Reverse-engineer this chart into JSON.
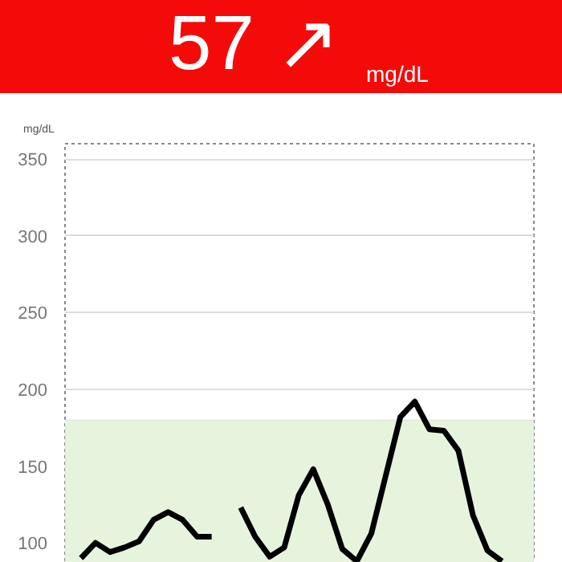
{
  "chart_data": {
    "type": "line",
    "title": "57 ↗",
    "subtitle": "mg/dL",
    "ylabel": "mg/dL",
    "categories": [
      null,
      null,
      null,
      null,
      null,
      null,
      null,
      null,
      null,
      null,
      null,
      null,
      null,
      null,
      null,
      null,
      null,
      null,
      null,
      null,
      null,
      null,
      null,
      null,
      null,
      null,
      null,
      null,
      null,
      null
    ],
    "series": [
      {
        "color": "#000000",
        "values": [
          90,
          100,
          94,
          97,
          101,
          115,
          120,
          115,
          104,
          104,
          null,
          null,
          null,
          null,
          null,
          null,
          null,
          null,
          null,
          null,
          null,
          null,
          null,
          null,
          null,
          null,
          null,
          null,
          null,
          null
        ]
      },
      {
        "color": "#000000",
        "values": [
          null,
          null,
          null,
          null,
          null,
          null,
          null,
          null,
          null,
          null,
          null,
          123,
          104,
          91,
          97,
          131,
          148,
          125,
          96,
          88,
          106,
          144,
          182,
          192,
          174,
          173,
          160,
          118,
          95,
          88
        ]
      }
    ],
    "ylim": [
      87,
      360
    ],
    "yticks": [
      100,
      150,
      200,
      250,
      300,
      350
    ],
    "grid": "y",
    "tick_labels": "y",
    "marker": "none",
    "line_style": "solid",
    "bands": [
      {
        "axis": "y",
        "from": 70,
        "to": 180,
        "color": "#e6f4dd"
      }
    ]
  }
}
